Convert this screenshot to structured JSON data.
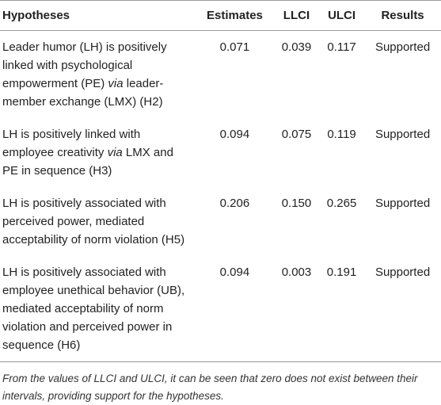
{
  "table": {
    "header": [
      "Hypotheses",
      "Estimates",
      "LLCI",
      "ULCI",
      "Results"
    ],
    "rows": [
      {
        "hypothesis": [
          {
            "text": "Leader humor (LH) is positively linked with psychological empowerment (PE) "
          },
          {
            "text": "via",
            "italic": true
          },
          {
            "text": " leader-member exchange (LMX) (H2)"
          }
        ],
        "cells": [
          "0.071",
          "0.039",
          "0.117",
          "Supported"
        ]
      },
      {
        "hypothesis": [
          {
            "text": "LH is positively linked with employee creativity "
          },
          {
            "text": "via",
            "italic": true
          },
          {
            "text": " LMX and PE in sequence (H3)"
          }
        ],
        "cells": [
          "0.094",
          "0.075",
          "0.119",
          "Supported"
        ]
      },
      {
        "hypothesis": [
          {
            "text": "LH is positively associated with perceived power, mediated acceptability of norm violation (H5)"
          }
        ],
        "cells": [
          "0.206",
          "0.150",
          "0.265",
          "Supported"
        ]
      },
      {
        "hypothesis": [
          {
            "text": "LH is positively associated with employee unethical behavior (UB), mediated acceptability of norm violation and perceived power in sequence (H6)"
          }
        ],
        "cells": [
          "0.094",
          "0.003",
          "0.191",
          "Supported"
        ]
      }
    ],
    "footnote": "From the values of LLCI and ULCI, it can be seen that zero does not exist between their intervals, providing support for the hypotheses."
  }
}
